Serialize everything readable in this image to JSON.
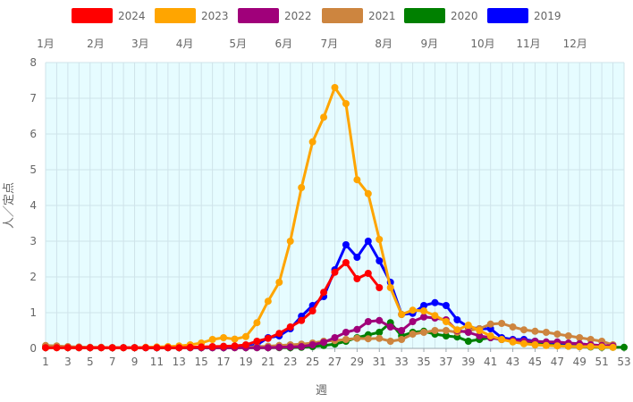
{
  "chart_data": {
    "type": "line",
    "xlabel": "週",
    "ylabel": "人／定点",
    "xlim": [
      1,
      53
    ],
    "ylim": [
      0,
      8
    ],
    "yticks": [
      0,
      1,
      2,
      3,
      4,
      5,
      6,
      7,
      8
    ],
    "xticks": [
      1,
      3,
      5,
      7,
      9,
      11,
      13,
      15,
      17,
      19,
      21,
      23,
      25,
      27,
      29,
      31,
      33,
      35,
      37,
      39,
      41,
      43,
      45,
      47,
      49,
      51,
      53
    ],
    "month_labels": [
      {
        "label": "1月",
        "week": 1
      },
      {
        "label": "2月",
        "week": 5.5
      },
      {
        "label": "3月",
        "week": 9.5
      },
      {
        "label": "4月",
        "week": 13.5
      },
      {
        "label": "5月",
        "week": 18.3
      },
      {
        "label": "6月",
        "week": 22.4
      },
      {
        "label": "7月",
        "week": 26.5
      },
      {
        "label": "8月",
        "week": 31.4
      },
      {
        "label": "9月",
        "week": 35.5
      },
      {
        "label": "10月",
        "week": 40.3
      },
      {
        "label": "11月",
        "week": 44.4
      },
      {
        "label": "12月",
        "week": 48.6
      }
    ],
    "legend_position": "top",
    "grid": true,
    "background": "#e6fcff",
    "series": [
      {
        "name": "2024",
        "color": "#ff0000",
        "x": [
          1,
          2,
          3,
          4,
          5,
          6,
          7,
          8,
          9,
          10,
          11,
          12,
          13,
          14,
          15,
          16,
          17,
          18,
          19,
          20,
          21,
          22,
          23,
          24,
          25,
          26,
          27,
          28,
          29,
          30,
          31
        ],
        "values": [
          0.02,
          0.02,
          0.02,
          0.02,
          0.02,
          0.02,
          0.02,
          0.02,
          0.02,
          0.02,
          0.02,
          0.02,
          0.02,
          0.03,
          0.04,
          0.05,
          0.06,
          0.07,
          0.1,
          0.2,
          0.28,
          0.42,
          0.6,
          0.78,
          1.05,
          1.57,
          2.13,
          2.4,
          1.95,
          2.1,
          1.7
        ]
      },
      {
        "name": "2023",
        "color": "#ffa500",
        "x": [
          1,
          2,
          3,
          4,
          5,
          6,
          7,
          8,
          9,
          10,
          11,
          12,
          13,
          14,
          15,
          16,
          17,
          18,
          19,
          20,
          21,
          22,
          23,
          24,
          25,
          26,
          27,
          28,
          29,
          30,
          31,
          32,
          33,
          34,
          35,
          36,
          37,
          38,
          39,
          40,
          41,
          42,
          43,
          44,
          45,
          46,
          47,
          48,
          49,
          50,
          51,
          52
        ],
        "values": [
          0.02,
          0.02,
          0.02,
          0.02,
          0.02,
          0.02,
          0.02,
          0.02,
          0.02,
          0.03,
          0.04,
          0.05,
          0.07,
          0.1,
          0.15,
          0.25,
          0.3,
          0.26,
          0.33,
          0.72,
          1.32,
          1.85,
          3.0,
          4.5,
          5.78,
          6.47,
          7.3,
          6.85,
          4.72,
          4.33,
          3.05,
          1.7,
          0.95,
          1.07,
          1.05,
          0.92,
          0.75,
          0.52,
          0.65,
          0.5,
          0.35,
          0.25,
          0.18,
          0.13,
          0.1,
          0.08,
          0.07,
          0.06,
          0.05,
          0.05,
          0.04,
          0.03
        ]
      },
      {
        "name": "2022",
        "color": "#a0007a",
        "x": [
          1,
          2,
          3,
          4,
          5,
          6,
          7,
          8,
          9,
          10,
          11,
          12,
          13,
          14,
          15,
          16,
          17,
          18,
          19,
          20,
          21,
          22,
          23,
          24,
          25,
          26,
          27,
          28,
          29,
          30,
          31,
          32,
          33,
          34,
          35,
          36,
          37,
          38,
          39,
          40,
          41,
          42,
          43,
          44,
          45,
          46,
          47,
          48,
          49,
          50,
          51,
          52
        ],
        "values": [
          0.02,
          0.02,
          0.02,
          0.02,
          0.02,
          0.02,
          0.02,
          0.02,
          0.02,
          0.02,
          0.02,
          0.02,
          0.02,
          0.02,
          0.02,
          0.02,
          0.02,
          0.02,
          0.02,
          0.02,
          0.02,
          0.03,
          0.04,
          0.05,
          0.1,
          0.17,
          0.3,
          0.45,
          0.53,
          0.75,
          0.78,
          0.6,
          0.5,
          0.75,
          0.88,
          0.85,
          0.8,
          0.5,
          0.45,
          0.35,
          0.3,
          0.25,
          0.22,
          0.2,
          0.2,
          0.18,
          0.18,
          0.15,
          0.13,
          0.1,
          0.08,
          0.07
        ]
      },
      {
        "name": "2021",
        "color": "#cd853f",
        "x": [
          1,
          2,
          3,
          4,
          5,
          6,
          7,
          8,
          9,
          10,
          11,
          12,
          13,
          14,
          15,
          16,
          17,
          18,
          19,
          20,
          21,
          22,
          23,
          24,
          25,
          26,
          27,
          28,
          29,
          30,
          31,
          32,
          33,
          34,
          35,
          36,
          37,
          38,
          39,
          40,
          41,
          42,
          43,
          44,
          45,
          46,
          47,
          48,
          49,
          50,
          51,
          52
        ],
        "values": [
          0.08,
          0.07,
          0.05,
          0.04,
          0.03,
          0.03,
          0.02,
          0.02,
          0.02,
          0.02,
          0.02,
          0.02,
          0.02,
          0.02,
          0.02,
          0.02,
          0.02,
          0.02,
          0.03,
          0.05,
          0.06,
          0.08,
          0.1,
          0.12,
          0.15,
          0.2,
          0.22,
          0.25,
          0.28,
          0.27,
          0.28,
          0.2,
          0.25,
          0.4,
          0.45,
          0.5,
          0.5,
          0.45,
          0.5,
          0.55,
          0.68,
          0.7,
          0.6,
          0.52,
          0.48,
          0.45,
          0.4,
          0.35,
          0.3,
          0.25,
          0.2,
          0.1
        ]
      },
      {
        "name": "2020",
        "color": "#008000",
        "x": [
          1,
          2,
          3,
          4,
          5,
          6,
          7,
          8,
          9,
          10,
          11,
          12,
          13,
          14,
          15,
          16,
          17,
          18,
          19,
          20,
          21,
          22,
          23,
          24,
          25,
          26,
          27,
          28,
          29,
          30,
          31,
          32,
          33,
          34,
          35,
          36,
          37,
          38,
          39,
          40,
          41,
          42,
          43,
          44,
          45,
          46,
          47,
          48,
          49,
          50,
          51,
          52,
          53
        ],
        "values": [
          0.05,
          0.04,
          0.03,
          0.02,
          0.02,
          0.02,
          0.02,
          0.02,
          0.02,
          0.02,
          0.02,
          0.02,
          0.02,
          0.02,
          0.02,
          0.02,
          0.02,
          0.02,
          0.02,
          0.02,
          0.02,
          0.02,
          0.02,
          0.03,
          0.05,
          0.08,
          0.12,
          0.2,
          0.3,
          0.38,
          0.45,
          0.72,
          0.35,
          0.45,
          0.48,
          0.4,
          0.35,
          0.32,
          0.2,
          0.25,
          0.3,
          0.25,
          0.2,
          0.15,
          0.12,
          0.1,
          0.08,
          0.06,
          0.05,
          0.04,
          0.03,
          0.03,
          0.03
        ]
      },
      {
        "name": "2019",
        "color": "#0000ff",
        "x": [
          1,
          2,
          3,
          4,
          5,
          6,
          7,
          8,
          9,
          10,
          11,
          12,
          13,
          14,
          15,
          16,
          17,
          18,
          19,
          20,
          21,
          22,
          23,
          24,
          25,
          26,
          27,
          28,
          29,
          30,
          31,
          32,
          33,
          34,
          35,
          36,
          37,
          38,
          39,
          40,
          41,
          42,
          43,
          44,
          45,
          46,
          47,
          48,
          49,
          50,
          51,
          52
        ],
        "values": [
          0.04,
          0.04,
          0.03,
          0.02,
          0.02,
          0.02,
          0.02,
          0.02,
          0.02,
          0.02,
          0.02,
          0.02,
          0.02,
          0.02,
          0.02,
          0.02,
          0.02,
          0.03,
          0.05,
          0.1,
          0.3,
          0.35,
          0.55,
          0.9,
          1.2,
          1.45,
          2.2,
          2.9,
          2.55,
          3.0,
          2.45,
          1.85,
          0.95,
          0.98,
          1.2,
          1.28,
          1.2,
          0.8,
          0.6,
          0.55,
          0.55,
          0.3,
          0.25,
          0.25,
          0.2,
          0.15,
          0.12,
          0.1,
          0.08,
          0.06,
          0.05,
          0.04
        ]
      }
    ]
  }
}
